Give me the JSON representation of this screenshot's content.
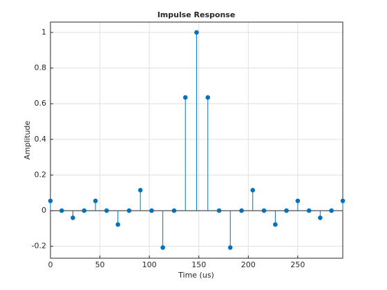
{
  "chart_data": {
    "type": "stem",
    "title": "Impulse Response",
    "x_label": "Time (us)",
    "y_label": "Amplitude",
    "x": [
      0,
      11.4,
      22.7,
      34.1,
      45.5,
      56.8,
      68.2,
      79.5,
      90.9,
      102.3,
      113.6,
      125,
      136.4,
      147.7,
      159.1,
      170.5,
      181.8,
      193.2,
      204.5,
      215.9,
      227.3,
      238.6,
      250,
      261.4,
      272.7,
      284.1,
      295.5
    ],
    "values": [
      0.055,
      0,
      -0.04,
      0,
      0.055,
      0,
      -0.078,
      0,
      0.115,
      0,
      -0.207,
      0,
      0.635,
      1,
      0.635,
      0,
      -0.207,
      0,
      0.115,
      0,
      -0.078,
      0,
      0.055,
      0,
      -0.04,
      0,
      0.055
    ],
    "color": "#0072bd",
    "xlim": [
      0,
      295.5
    ],
    "xticks": [
      0,
      50,
      100,
      150,
      200,
      250
    ],
    "ylim": [
      -0.267,
      1.058
    ],
    "yticks": [
      -0.2,
      0,
      0.2,
      0.4,
      0.6,
      0.8,
      1
    ],
    "grid": true
  }
}
